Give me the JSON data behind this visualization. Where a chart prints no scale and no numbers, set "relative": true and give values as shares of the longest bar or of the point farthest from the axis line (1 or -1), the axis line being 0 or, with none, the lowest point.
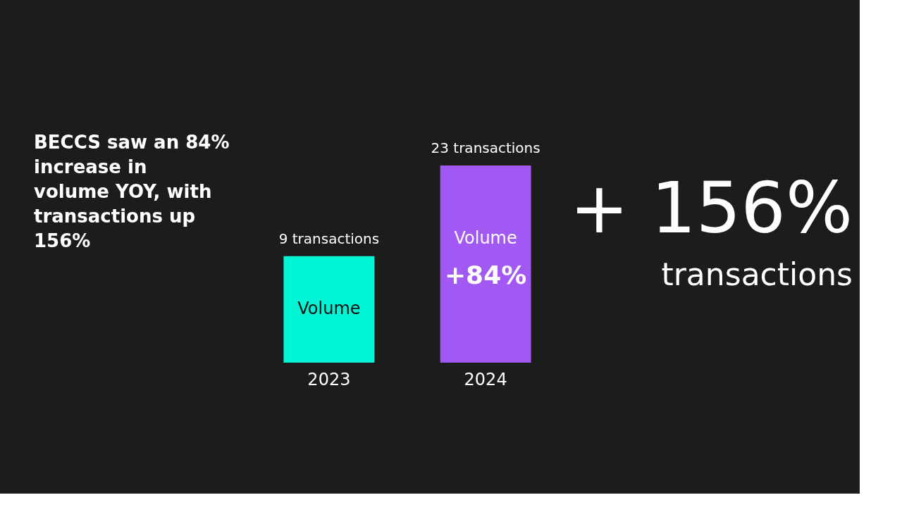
{
  "chart_data": {
    "type": "bar",
    "title": "BECCS saw an 84% increase in volume YOY, with transactions up 156%",
    "categories": [
      "2023",
      "2024"
    ],
    "series": [
      {
        "values": [
          0.54,
          1
        ]
      }
    ],
    "colors": [
      "#00f7d6",
      "#a259f4"
    ],
    "relative": true,
    "value_labels": [
      "9 transactions",
      "23 transactions"
    ],
    "annotations": [
      "Volume",
      "Volume",
      "+84%",
      "+ 156%",
      "transactions"
    ],
    "grid": false
  }
}
